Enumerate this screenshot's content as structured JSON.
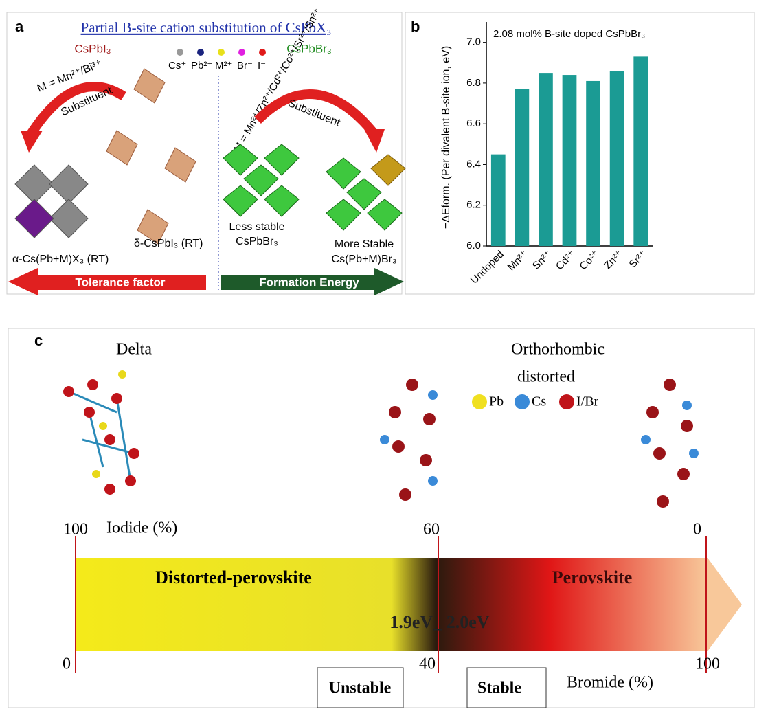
{
  "panel_a": {
    "label": "a",
    "title": "Partial B-site cation substitution of CsPbX₃",
    "left_compound": "CsPbI₃",
    "right_compound": "CsPbBr₃",
    "legend": [
      "Cs⁺",
      "Pb²⁺",
      "M²⁺",
      "Br⁻",
      "I⁻"
    ],
    "left_substitution": "M = Mn²⁺/Bi³⁺",
    "right_substitution": "M = Mn²⁺/Zn²⁺/Cd²⁺/Co²⁺/Sr²⁺/Sn²⁺",
    "arrow_label": "Substituent",
    "delta_phase": "δ-CsPbI₃ (RT)",
    "alpha_phase": "α-Cs(Pb+M)X₃ (RT)",
    "less_stable": [
      "Less stable",
      "CsPbBr₃"
    ],
    "more_stable": [
      "More Stable",
      "Cs(Pb+M)Br₃"
    ],
    "left_arrow": "Tolerance factor",
    "right_arrow": "Formation Energy"
  },
  "chart_data": {
    "type": "bar",
    "label": "b",
    "title": "2.08 mol% B-site doped CsPbBr₃",
    "y_label": "−ΔEform. (Per divalent B-site ion, eV)",
    "categories": [
      "Undoped",
      "Mn²⁺",
      "Sn²⁺",
      "Cd²⁺",
      "Co²⁺",
      "Zn²⁺",
      "Sr²⁺"
    ],
    "values": [
      6.45,
      6.77,
      6.85,
      6.84,
      6.81,
      6.86,
      6.93
    ],
    "color": "#1b9b94",
    "ylim": [
      6.0,
      7.1
    ],
    "yticks": [
      {
        "value": 6,
        "label": "6.0"
      },
      6.2,
      6.4,
      6.6,
      6.8,
      {
        "value": 7,
        "label": "7.0"
      }
    ]
  },
  "panel_c": {
    "label": "c",
    "delta": "Delta",
    "ortho": [
      "Orthorhombic",
      "distorted"
    ],
    "legend": [
      "Pb",
      "Cs",
      "I/Br"
    ],
    "iodide_ticks": [
      "100",
      "60",
      "0"
    ],
    "iodide_label": "Iodide (%)",
    "left_region": "Distorted-perovskite",
    "right_region": "Perovskite",
    "gap": "1.9eV_ 2.0eV",
    "bromide_ticks": [
      "0",
      "40",
      "100"
    ],
    "bromide_label": "Bromide (%)",
    "unstable": "Unstable",
    "stable": "Stable"
  }
}
